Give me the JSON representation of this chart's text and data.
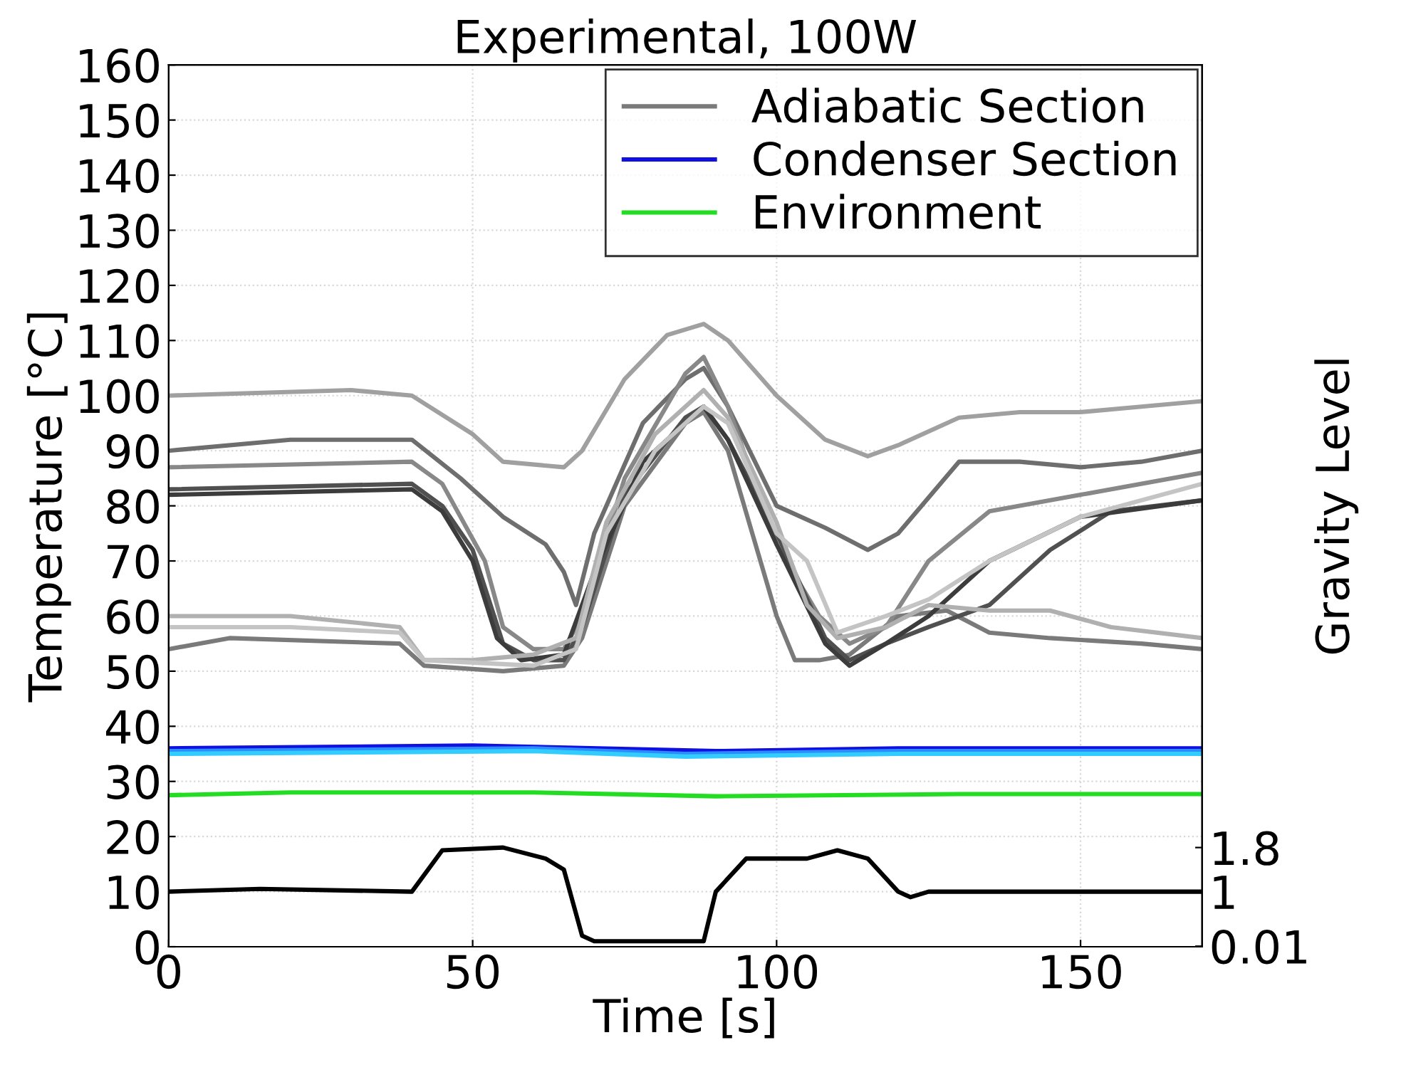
{
  "chart_data": {
    "type": "line",
    "title": "Experimental, 100W",
    "xlabel": "Time [s]",
    "ylabel": "Temperature [°C]",
    "y2label": "Gravity Level",
    "xlim": [
      0,
      170
    ],
    "xticks": [
      0,
      50,
      100,
      150
    ],
    "ylim": [
      0,
      160
    ],
    "yticks": [
      0,
      10,
      20,
      30,
      40,
      50,
      60,
      70,
      80,
      90,
      100,
      110,
      120,
      130,
      140,
      150,
      160
    ],
    "y2lim": [
      0,
      16
    ],
    "y2ticks": [
      0.01,
      1,
      1.8
    ],
    "grid": true,
    "legend": "top right",
    "series": [
      {
        "name": "Adiabatic Section",
        "color": "#7a7a7a",
        "x": [
          0,
          10,
          38,
          42,
          55,
          65,
          68,
          75,
          85,
          88,
          92,
          96,
          100,
          103,
          107,
          112,
          120,
          128,
          135,
          145,
          160,
          170
        ],
        "values": [
          54,
          56,
          55,
          51,
          50,
          51,
          56,
          80,
          95,
          97,
          90,
          75,
          60,
          52,
          52,
          53,
          60,
          61,
          57,
          56,
          55,
          54
        ]
      },
      {
        "color": "#a0a0a0",
        "x": [
          0,
          30,
          40,
          50,
          55,
          65,
          68,
          75,
          82,
          88,
          92,
          100,
          108,
          115,
          120,
          130,
          140,
          150,
          160,
          170
        ],
        "values": [
          100,
          101,
          100,
          93,
          88,
          87,
          90,
          103,
          111,
          113,
          110,
          100,
          92,
          89,
          91,
          96,
          97,
          97,
          98,
          99
        ]
      },
      {
        "color": "#6e6e6e",
        "x": [
          0,
          20,
          40,
          48,
          55,
          62,
          65,
          67,
          70,
          78,
          85,
          88,
          92,
          100,
          108,
          115,
          120,
          130,
          140,
          150,
          160,
          170
        ],
        "values": [
          90,
          92,
          92,
          85,
          78,
          73,
          68,
          62,
          75,
          95,
          103,
          105,
          98,
          80,
          76,
          72,
          75,
          88,
          88,
          87,
          88,
          90
        ]
      },
      {
        "color": "#888888",
        "x": [
          0,
          40,
          45,
          52,
          55,
          60,
          65,
          68,
          75,
          85,
          88,
          92,
          100,
          107,
          112,
          118,
          125,
          135,
          150,
          170
        ],
        "values": [
          87,
          88,
          84,
          70,
          58,
          54,
          54,
          60,
          85,
          104,
          107,
          98,
          73,
          60,
          55,
          58,
          70,
          79,
          82,
          86
        ]
      },
      {
        "color": "#505050",
        "x": [
          0,
          40,
          45,
          50,
          55,
          60,
          65,
          68,
          75,
          85,
          88,
          92,
          100,
          108,
          112,
          118,
          125,
          135,
          145,
          155,
          170
        ],
        "values": [
          83,
          84,
          80,
          72,
          55,
          52,
          52,
          58,
          82,
          96,
          98,
          92,
          75,
          56,
          52,
          55,
          58,
          62,
          72,
          79,
          81
        ]
      },
      {
        "color": "#3c3c3c",
        "x": [
          0,
          40,
          45,
          50,
          54,
          58,
          65,
          70,
          78,
          88,
          92,
          100,
          108,
          112,
          118,
          125,
          135,
          150,
          170
        ],
        "values": [
          82,
          83,
          79,
          70,
          56,
          52,
          53,
          68,
          88,
          98,
          92,
          73,
          55,
          51,
          55,
          60,
          70,
          78,
          81
        ]
      },
      {
        "color": "#b0b0b0",
        "x": [
          0,
          20,
          38,
          42,
          50,
          60,
          67,
          72,
          80,
          88,
          92,
          100,
          105,
          110,
          118,
          125,
          135,
          145,
          155,
          170
        ],
        "values": [
          60,
          60,
          58,
          52,
          52,
          53,
          56,
          77,
          93,
          101,
          96,
          77,
          62,
          56,
          58,
          62,
          61,
          61,
          58,
          56
        ]
      },
      {
        "color": "#c4c4c4",
        "x": [
          0,
          20,
          38,
          42,
          60,
          67,
          72,
          80,
          88,
          92,
          100,
          105,
          110,
          118,
          125,
          135,
          150,
          170
        ],
        "values": [
          58,
          58,
          57,
          52,
          51,
          54,
          75,
          90,
          98,
          95,
          75,
          70,
          57,
          60,
          63,
          70,
          78,
          84
        ]
      },
      {
        "name": "Condenser Section",
        "color": "#1010e0",
        "x": [
          0,
          50,
          90,
          120,
          170
        ],
        "values": [
          36,
          36.5,
          35.5,
          36,
          36
        ]
      },
      {
        "color": "#2a8cff",
        "x": [
          0,
          60,
          85,
          120,
          170
        ],
        "values": [
          35.5,
          36,
          35,
          35.5,
          35.5
        ]
      },
      {
        "color": "#33ccff",
        "x": [
          0,
          60,
          85,
          120,
          170
        ],
        "values": [
          35,
          35.5,
          34.5,
          35,
          35
        ]
      },
      {
        "name": "Environment",
        "color": "#22dd22",
        "x": [
          0,
          20,
          60,
          90,
          130,
          170
        ],
        "values": [
          27.5,
          28,
          28,
          27.3,
          27.7,
          27.7
        ]
      },
      {
        "color": "#000000",
        "axis": "y2",
        "x": [
          0,
          15,
          40,
          45,
          55,
          62,
          65,
          68,
          70,
          80,
          88,
          90,
          95,
          105,
          110,
          115,
          120,
          122,
          125,
          150,
          170
        ],
        "values": [
          1.0,
          1.05,
          1.0,
          1.75,
          1.8,
          1.6,
          1.4,
          0.2,
          0.1,
          0.1,
          0.1,
          1.0,
          1.6,
          1.6,
          1.75,
          1.6,
          1.0,
          0.9,
          1.0,
          1.0,
          1.0
        ]
      }
    ]
  }
}
